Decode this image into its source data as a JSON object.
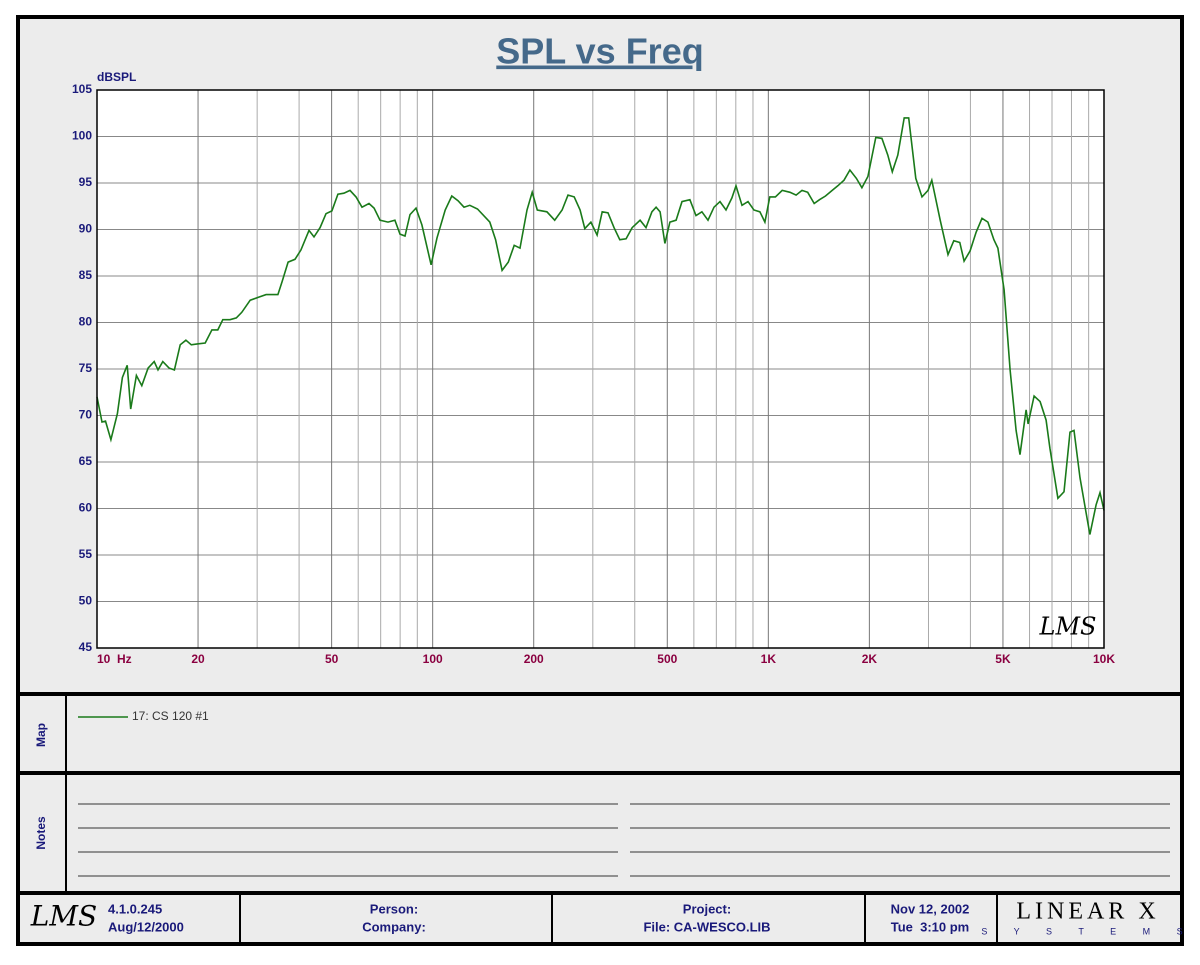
{
  "chart_data": {
    "type": "line",
    "title": "SPL vs Freq",
    "y_label": "dBSPL",
    "xscale": "log",
    "grid": true,
    "xlim": [
      10,
      10000
    ],
    "ylim": [
      45,
      105
    ],
    "xticks": [
      {
        "value": 10,
        "label": "10  Hz"
      },
      20,
      50,
      100,
      200,
      500,
      {
        "value": 1000,
        "label": "1K"
      },
      {
        "value": 2000,
        "label": "2K"
      },
      {
        "value": 5000,
        "label": "5K"
      },
      {
        "value": 10000,
        "label": "10K"
      }
    ],
    "xminor": [
      30,
      40,
      60,
      70,
      80,
      90,
      300,
      400,
      600,
      700,
      800,
      900,
      3000,
      4000,
      6000,
      7000,
      8000,
      9000
    ],
    "yticks": [
      45,
      50,
      55,
      60,
      65,
      70,
      75,
      80,
      85,
      90,
      95,
      100,
      105
    ],
    "x": [
      10,
      10.35,
      10.6,
      11.0,
      11.5,
      11.9,
      12.3,
      12.6,
      13.1,
      13.6,
      14.2,
      14.8,
      15.2,
      15.7,
      16.4,
      17.0,
      17.7,
      18.4,
      19.1,
      19.9,
      21.0,
      22.0,
      22.9,
      23.7,
      24.9,
      26.0,
      27.0,
      28.6,
      30.2,
      31.9,
      34.6,
      35.6,
      37.1,
      38.9,
      40.5,
      42.8,
      44.3,
      46.2,
      48.1,
      50.1,
      52.2,
      54.4,
      56.7,
      59.1,
      61.6,
      64.6,
      66.9,
      69.7,
      73.6,
      77.2,
      79.9,
      82.7,
      85.6,
      89.2,
      92.9,
      98.9,
      103,
      109,
      114,
      119,
      124,
      129,
      136,
      148,
      154,
      161,
      168,
      175,
      182,
      191,
      198,
      205,
      219,
      231,
      243,
      253,
      264,
      275,
      284,
      296,
      309,
      320,
      333,
      347,
      361,
      377,
      393,
      415,
      432,
      450,
      463,
      476,
      492,
      509,
      531,
      553,
      584,
      609,
      634,
      661,
      689,
      718,
      748,
      779,
      801,
      835,
      870,
      906,
      944,
      977,
      1010,
      1050,
      1100,
      1160,
      1210,
      1260,
      1310,
      1370,
      1420,
      1480,
      1550,
      1610,
      1680,
      1750,
      1830,
      1900,
      1980,
      2090,
      2180,
      2270,
      2340,
      2430,
      2540,
      2620,
      2750,
      2870,
      2990,
      3070,
      3250,
      3430,
      3570,
      3720,
      3830,
      3990,
      4160,
      4330,
      4510,
      4700,
      4830,
      5040,
      5250,
      5470,
      5620,
      5860,
      5940,
      6190,
      6450,
      6720,
      6900,
      7290,
      7600,
      7920,
      8140,
      8480,
      8840,
      9080,
      9470,
      9730,
      10000
    ],
    "series": [
      {
        "name": "17: CS 120 #1",
        "color": "#1a7a1a",
        "values": [
          72.0,
          69.3,
          69.4,
          67.4,
          70.2,
          74.1,
          75.4,
          70.7,
          74.3,
          73.2,
          75.1,
          75.8,
          74.9,
          75.8,
          75.1,
          74.9,
          77.6,
          78.1,
          77.6,
          77.7,
          77.8,
          79.2,
          79.2,
          80.3,
          80.3,
          80.5,
          81.1,
          82.4,
          82.7,
          83.0,
          83.0,
          84.4,
          86.5,
          86.8,
          87.8,
          89.9,
          89.2,
          90.2,
          91.7,
          92.0,
          93.8,
          93.9,
          94.2,
          93.5,
          92.4,
          92.8,
          92.3,
          91.0,
          90.8,
          91.0,
          89.5,
          89.3,
          91.6,
          92.3,
          90.5,
          86.2,
          89.1,
          92.1,
          93.6,
          93.1,
          92.4,
          92.6,
          92.2,
          90.8,
          88.9,
          85.6,
          86.5,
          88.3,
          88.0,
          92.1,
          94.0,
          92.1,
          91.9,
          91.0,
          92.1,
          93.7,
          93.5,
          92.1,
          90.1,
          90.8,
          89.4,
          91.9,
          91.8,
          90.2,
          88.9,
          89.0,
          90.2,
          91.0,
          90.2,
          91.9,
          92.4,
          91.9,
          88.5,
          90.8,
          91.0,
          93.0,
          93.2,
          91.5,
          91.9,
          91.0,
          92.4,
          93.0,
          92.1,
          93.4,
          94.7,
          92.6,
          93.0,
          92.1,
          91.9,
          90.8,
          93.5,
          93.5,
          94.2,
          94.0,
          93.7,
          94.2,
          94.0,
          92.8,
          93.2,
          93.6,
          94.2,
          94.7,
          95.3,
          96.4,
          95.5,
          94.5,
          95.7,
          99.9,
          99.8,
          98.0,
          96.2,
          98.0,
          102.0,
          102.0,
          95.5,
          93.5,
          94.2,
          95.3,
          91.0,
          87.3,
          88.8,
          88.6,
          86.6,
          87.7,
          89.7,
          91.2,
          90.8,
          88.9,
          88.0,
          83.5,
          74.9,
          68.4,
          65.8,
          70.6,
          69.1,
          72.1,
          71.5,
          69.5,
          66.5,
          61.1,
          61.8,
          68.2,
          68.4,
          63.3,
          59.6,
          57.2,
          60.4,
          61.7,
          59.8
        ]
      }
    ],
    "watermark": "LMS"
  },
  "map": {
    "label": "Map"
  },
  "notes": {
    "label": "Notes"
  },
  "footer": {
    "logo": "LMS",
    "version": "4.1.0.245",
    "build_date": "Aug/12/2000",
    "person": "Person:",
    "company": "Company:",
    "project": "Project:",
    "file": "File: CA-WESCO.LIB",
    "date": "Nov 12, 2002",
    "time": "Tue  3:10 pm",
    "brand": "LINEAR X",
    "brand_sub": "S Y S T E M S"
  }
}
